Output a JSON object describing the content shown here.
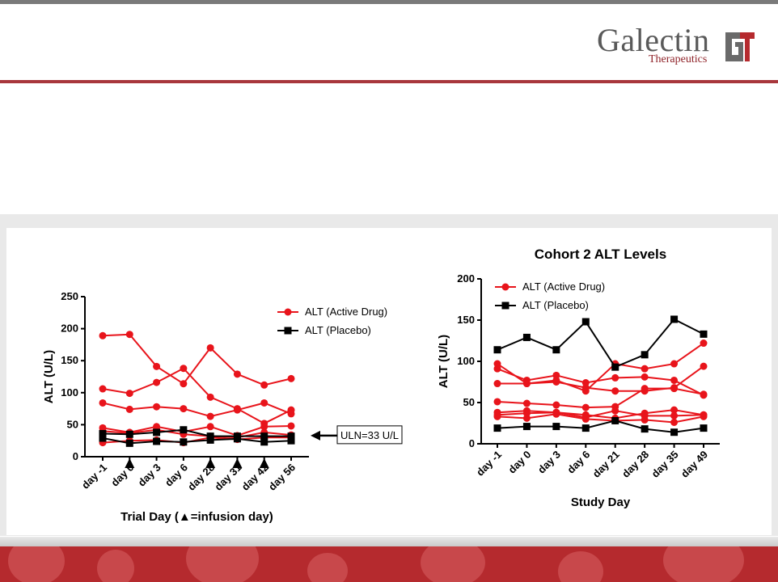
{
  "brand": {
    "name": "Galectin",
    "sub": "Therapeutics",
    "mark_letters": "GT"
  },
  "colors": {
    "accent": "#b52a2e",
    "active": "#e8141b",
    "placebo": "#000000"
  },
  "chart_data": [
    {
      "type": "line",
      "title": "",
      "xlabel": "Trial Day (▲=infusion day)",
      "ylabel": "ALT (U/L)",
      "ylim": [
        0,
        250
      ],
      "yticks": [
        0,
        50,
        100,
        150,
        200,
        250
      ],
      "categories": [
        "day -1",
        "day 0",
        "day 3",
        "day 6",
        "day 28",
        "day 31",
        "day 42",
        "day 56"
      ],
      "infusion_days": [
        "day 0",
        "day 28",
        "day 31",
        "day 42"
      ],
      "legend": [
        "ALT (Active Drug)",
        "ALT (Placebo)"
      ],
      "legend_position": "top-right",
      "annotation": "ULN=33 U/L",
      "uln": 33,
      "series": [
        {
          "group": "active",
          "values": [
            189,
            191,
            141,
            114,
            170,
            129,
            112,
            122
          ]
        },
        {
          "group": "active",
          "values": [
            106,
            99,
            116,
            138,
            93,
            75,
            52,
            73
          ]
        },
        {
          "group": "active",
          "values": [
            84,
            74,
            78,
            75,
            63,
            73,
            84,
            67
          ]
        },
        {
          "group": "active",
          "values": [
            45,
            38,
            47,
            39,
            47,
            33,
            47,
            48
          ]
        },
        {
          "group": "active",
          "values": [
            40,
            37,
            42,
            35,
            32,
            30,
            38,
            34
          ]
        },
        {
          "group": "active",
          "values": [
            22,
            25,
            26,
            22,
            30,
            27,
            30,
            30
          ]
        },
        {
          "group": "placebo",
          "values": [
            36,
            35,
            38,
            42,
            32,
            32,
            32,
            32
          ]
        },
        {
          "group": "placebo",
          "values": [
            29,
            21,
            24,
            23,
            26,
            28,
            23,
            25
          ]
        }
      ]
    },
    {
      "type": "line",
      "title": "Cohort 2 ALT Levels",
      "xlabel": "Study Day",
      "ylabel": "ALT (U/L)",
      "ylim": [
        0,
        200
      ],
      "yticks": [
        0,
        50,
        100,
        150,
        200
      ],
      "categories": [
        "day -1",
        "day 0",
        "day 3",
        "day 6",
        "day 21",
        "day 28",
        "day 35",
        "day 49"
      ],
      "legend": [
        "ALT (Active Drug)",
        "ALT (Placebo)"
      ],
      "legend_position": "top-left",
      "series": [
        {
          "group": "active",
          "values": [
            97,
            73,
            77,
            64,
            97,
            91,
            97,
            122
          ]
        },
        {
          "group": "active",
          "values": [
            91,
            77,
            83,
            74,
            80,
            81,
            77,
            59
          ]
        },
        {
          "group": "active",
          "values": [
            73,
            73,
            75,
            68,
            64,
            64,
            68,
            94
          ]
        },
        {
          "group": "active",
          "values": [
            51,
            49,
            47,
            44,
            45,
            67,
            67,
            60
          ]
        },
        {
          "group": "active",
          "values": [
            38,
            40,
            38,
            35,
            31,
            37,
            41,
            35
          ]
        },
        {
          "group": "active",
          "values": [
            33,
            31,
            36,
            30,
            28,
            29,
            26,
            33
          ]
        },
        {
          "group": "active",
          "values": [
            35,
            37,
            38,
            32,
            40,
            34,
            34,
            35
          ]
        },
        {
          "group": "placebo",
          "values": [
            114,
            129,
            114,
            148,
            93,
            108,
            151,
            133
          ]
        },
        {
          "group": "placebo",
          "values": [
            19,
            21,
            21,
            19,
            28,
            18,
            14,
            19
          ]
        }
      ]
    }
  ]
}
